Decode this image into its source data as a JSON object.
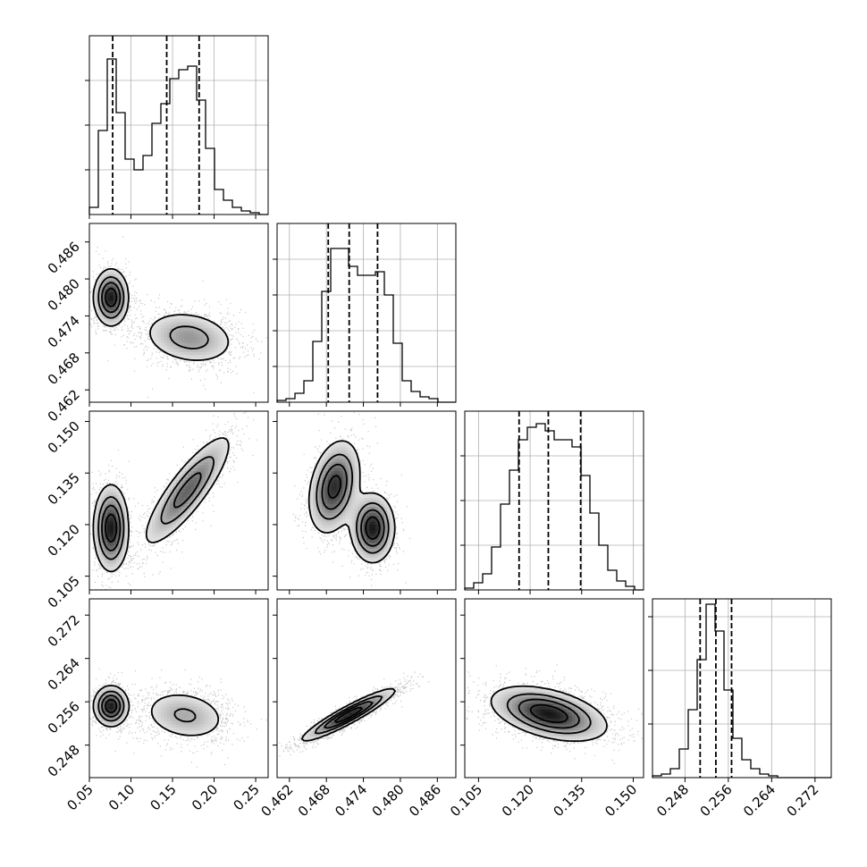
{
  "chart_data": {
    "type": "corner",
    "title": "",
    "parameters": [
      {
        "range": [
          0.05,
          0.265
        ],
        "ticks": [
          0.05,
          0.1,
          0.15,
          0.2,
          0.25
        ],
        "tick_labels": [
          "0.05",
          "0.10",
          "0.15",
          "0.20",
          "0.25"
        ]
      },
      {
        "range": [
          0.46,
          0.489
        ],
        "ticks": [
          0.462,
          0.468,
          0.474,
          0.48,
          0.486
        ],
        "tick_labels": [
          "0.462",
          "0.468",
          "0.474",
          "0.480",
          "0.486"
        ]
      },
      {
        "range": [
          0.101,
          0.153
        ],
        "ticks": [
          0.105,
          0.12,
          0.135,
          0.15
        ],
        "tick_labels": [
          "0.105",
          "0.120",
          "0.135",
          "0.150"
        ]
      },
      {
        "range": [
          0.242,
          0.275
        ],
        "ticks": [
          0.248,
          0.256,
          0.264,
          0.272
        ],
        "tick_labels": [
          "0.248",
          "0.256",
          "0.264",
          "0.272"
        ]
      }
    ],
    "histograms": [
      {
        "param": 0,
        "edges": [
          0.05,
          0.265
        ],
        "counts": [
          0.04,
          0.47,
          0.87,
          0.57,
          0.31,
          0.25,
          0.33,
          0.51,
          0.62,
          0.76,
          0.81,
          0.83,
          0.64,
          0.37,
          0.14,
          0.08,
          0.04,
          0.02,
          0.01,
          0.0
        ],
        "quantiles": [
          0.078,
          0.143,
          0.182
        ],
        "yticks": [
          0.25,
          0.5,
          0.75
        ]
      },
      {
        "param": 1,
        "edges": [
          0.46,
          0.489
        ],
        "counts": [
          0.01,
          0.02,
          0.05,
          0.12,
          0.34,
          0.62,
          0.86,
          0.86,
          0.76,
          0.71,
          0.71,
          0.73,
          0.6,
          0.33,
          0.12,
          0.06,
          0.03,
          0.02,
          0.0,
          0.0
        ],
        "quantiles": [
          0.4683,
          0.4717,
          0.4763
        ],
        "yticks": [
          0.2,
          0.4,
          0.6,
          0.8
        ]
      },
      {
        "param": 2,
        "edges": [
          0.101,
          0.153
        ],
        "counts": [
          0.01,
          0.04,
          0.09,
          0.24,
          0.48,
          0.67,
          0.84,
          0.91,
          0.93,
          0.89,
          0.84,
          0.84,
          0.8,
          0.64,
          0.43,
          0.25,
          0.11,
          0.05,
          0.02,
          0.0
        ],
        "quantiles": [
          0.1168,
          0.1253,
          0.1347
        ],
        "yticks": [
          0.25,
          0.5,
          0.75
        ]
      },
      {
        "param": 3,
        "edges": [
          0.242,
          0.275
        ],
        "counts": [
          0.01,
          0.02,
          0.05,
          0.16,
          0.38,
          0.66,
          0.97,
          0.82,
          0.49,
          0.22,
          0.1,
          0.05,
          0.02,
          0.01,
          0.0,
          0.0,
          0.0,
          0.0,
          0.0,
          0.0
        ],
        "quantiles": [
          0.2508,
          0.2537,
          0.2566
        ],
        "yticks": [
          0.3,
          0.6,
          0.9
        ]
      }
    ],
    "joint": [
      {
        "x": 0,
        "y": 1,
        "modes": [
          {
            "mx": 0.076,
            "my": 0.477,
            "sx": 0.01,
            "sy": 0.0022,
            "rho": 0.0,
            "w": 0.45
          },
          {
            "mx": 0.17,
            "my": 0.4705,
            "sx": 0.028,
            "sy": 0.0022,
            "rho": -0.2,
            "w": 0.55
          }
        ]
      },
      {
        "x": 0,
        "y": 2,
        "modes": [
          {
            "mx": 0.076,
            "my": 0.119,
            "sx": 0.01,
            "sy": 0.006,
            "rho": 0.0,
            "w": 0.45
          },
          {
            "mx": 0.168,
            "my": 0.13,
            "sx": 0.026,
            "sy": 0.008,
            "rho": 0.85,
            "w": 0.55
          }
        ]
      },
      {
        "x": 1,
        "y": 2,
        "modes": [
          {
            "mx": 0.4693,
            "my": 0.131,
            "sx": 0.002,
            "sy": 0.0065,
            "rho": 0.3,
            "w": 0.58
          },
          {
            "mx": 0.4755,
            "my": 0.119,
            "sx": 0.0017,
            "sy": 0.0048,
            "rho": 0.0,
            "w": 0.42
          }
        ]
      },
      {
        "x": 0,
        "y": 3,
        "modes": [
          {
            "mx": 0.076,
            "my": 0.2552,
            "sx": 0.01,
            "sy": 0.0018,
            "rho": 0.0,
            "w": 0.45
          },
          {
            "mx": 0.165,
            "my": 0.2535,
            "sx": 0.026,
            "sy": 0.0024,
            "rho": -0.2,
            "w": 0.55
          }
        ]
      },
      {
        "x": 1,
        "y": 3,
        "modes": [
          {
            "mx": 0.4716,
            "my": 0.2536,
            "sx": 0.0036,
            "sy": 0.0023,
            "rho": 0.93,
            "w": 1.0
          }
        ]
      },
      {
        "x": 2,
        "y": 3,
        "modes": [
          {
            "mx": 0.1255,
            "my": 0.2538,
            "sx": 0.008,
            "sy": 0.0024,
            "rho": -0.45,
            "w": 1.0
          }
        ]
      }
    ]
  }
}
